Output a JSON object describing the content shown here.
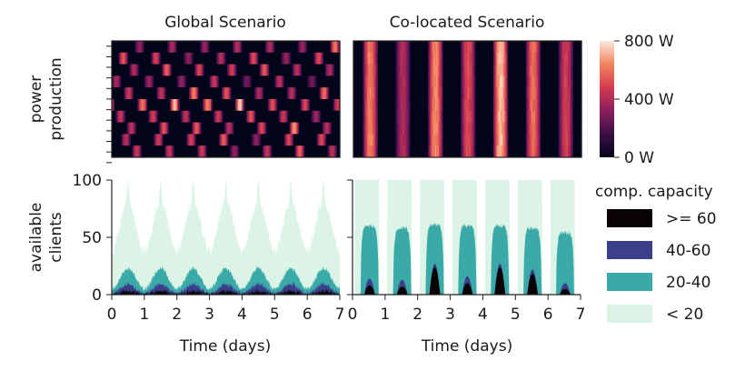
{
  "chart_data": [
    {
      "type": "heatmap",
      "title": "Global Scenario",
      "ylabel": "power production",
      "rows": 10,
      "days": 7,
      "row_phase_hours": [
        20,
        8,
        16,
        3,
        12,
        22,
        6,
        14,
        10,
        18
      ],
      "peak_w": [
        620,
        560,
        700,
        480,
        650,
        800,
        540,
        690,
        600,
        580
      ]
    },
    {
      "type": "heatmap",
      "title": "Co-located Scenario",
      "rows": 10,
      "days": 7,
      "peak_hour": 12,
      "day_peak_w": [
        680,
        430,
        700,
        560,
        800,
        640,
        520
      ]
    },
    {
      "type": "colorbar",
      "ticks": [
        "800 W",
        "400 W",
        "0 W"
      ],
      "range": [
        0,
        800
      ]
    },
    {
      "type": "area",
      "ylabel": "available clients",
      "xlabel": "Time (days)",
      "xlim": [
        0,
        7
      ],
      "ylim": [
        0,
        100
      ],
      "xticks": [
        "0",
        "1",
        "2",
        "3",
        "4",
        "5",
        "6",
        "7"
      ],
      "yticks": [
        "0",
        "50",
        "100"
      ],
      "series": [
        {
          "name": "< 20",
          "base": 60,
          "amp": 22,
          "spikes": 4
        },
        {
          "name": "20-40",
          "base": 14,
          "amp": 9
        },
        {
          "name": "40-60",
          "base": 5,
          "amp": 4
        },
        {
          "name": ">= 60",
          "base": 1.5,
          "amp": 1.5
        }
      ]
    },
    {
      "type": "area",
      "xlabel": "Time (days)",
      "xlim": [
        0,
        7
      ],
      "ylim": [
        0,
        100
      ],
      "xticks": [
        "0",
        "1",
        "2",
        "3",
        "4",
        "5",
        "6",
        "7"
      ],
      "day_window": [
        0.25,
        0.8
      ],
      "series": [
        {
          "name": "< 20",
          "values": [
            100,
            100,
            100,
            100,
            100,
            100,
            100
          ]
        },
        {
          "name": "20-40",
          "values": [
            60,
            58,
            61,
            60,
            60,
            58,
            54
          ]
        },
        {
          "name": "40-60",
          "values": [
            14,
            13,
            27,
            16,
            27,
            22,
            10
          ]
        },
        {
          "name": ">= 60",
          "values": [
            8,
            7,
            24,
            10,
            24,
            18,
            5
          ]
        }
      ]
    }
  ],
  "legend": {
    "title": "comp. capacity",
    "entries": [
      ">= 60",
      "40-60",
      "20-40",
      "< 20"
    ],
    "colors": [
      "#0a0306",
      "#3b3f8a",
      "#3aaaa8",
      "#dcf4e6"
    ]
  }
}
